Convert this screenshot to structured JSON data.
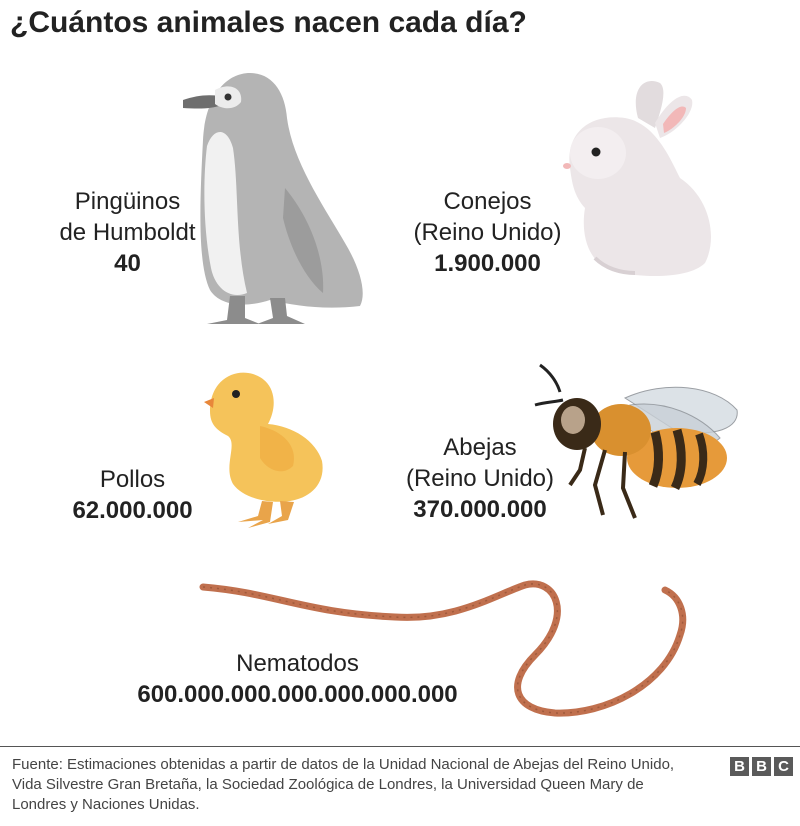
{
  "title": "¿Cuántos animales nacen cada día?",
  "animals": [
    {
      "line1": "Pingüinos",
      "line2": "de Humboldt",
      "value": "40",
      "icon": "penguin-icon"
    },
    {
      "line1": "Conejos",
      "line2": "(Reino Unido)",
      "value": "1.900.000",
      "icon": "rabbit-icon"
    },
    {
      "line1": "Pollos",
      "value": "62.000.000",
      "icon": "chick-icon"
    },
    {
      "line1": "Abejas",
      "line2": "(Reino Unido)",
      "value": "370.000.000",
      "icon": "bee-icon"
    },
    {
      "line1": "Nematodos",
      "value": "600.000.000.000.000.000.000",
      "icon": "worm-icon"
    }
  ],
  "footer": {
    "source": "Fuente: Estimaciones obtenidas a partir de datos de la Unidad Nacional de Abejas del Reino Unido, Vida Silvestre Gran Bretaña, la Sociedad Zoológica de Londres, la Universidad Queen Mary de Londres y Naciones Unidas.",
    "logo": [
      "B",
      "B",
      "C"
    ]
  },
  "colors": {
    "penguin": "#b4b4b4",
    "rabbit": "#ece6e8",
    "chick": "#f5c35a",
    "bee": "#e69a3a",
    "worm": "#c0704e"
  }
}
